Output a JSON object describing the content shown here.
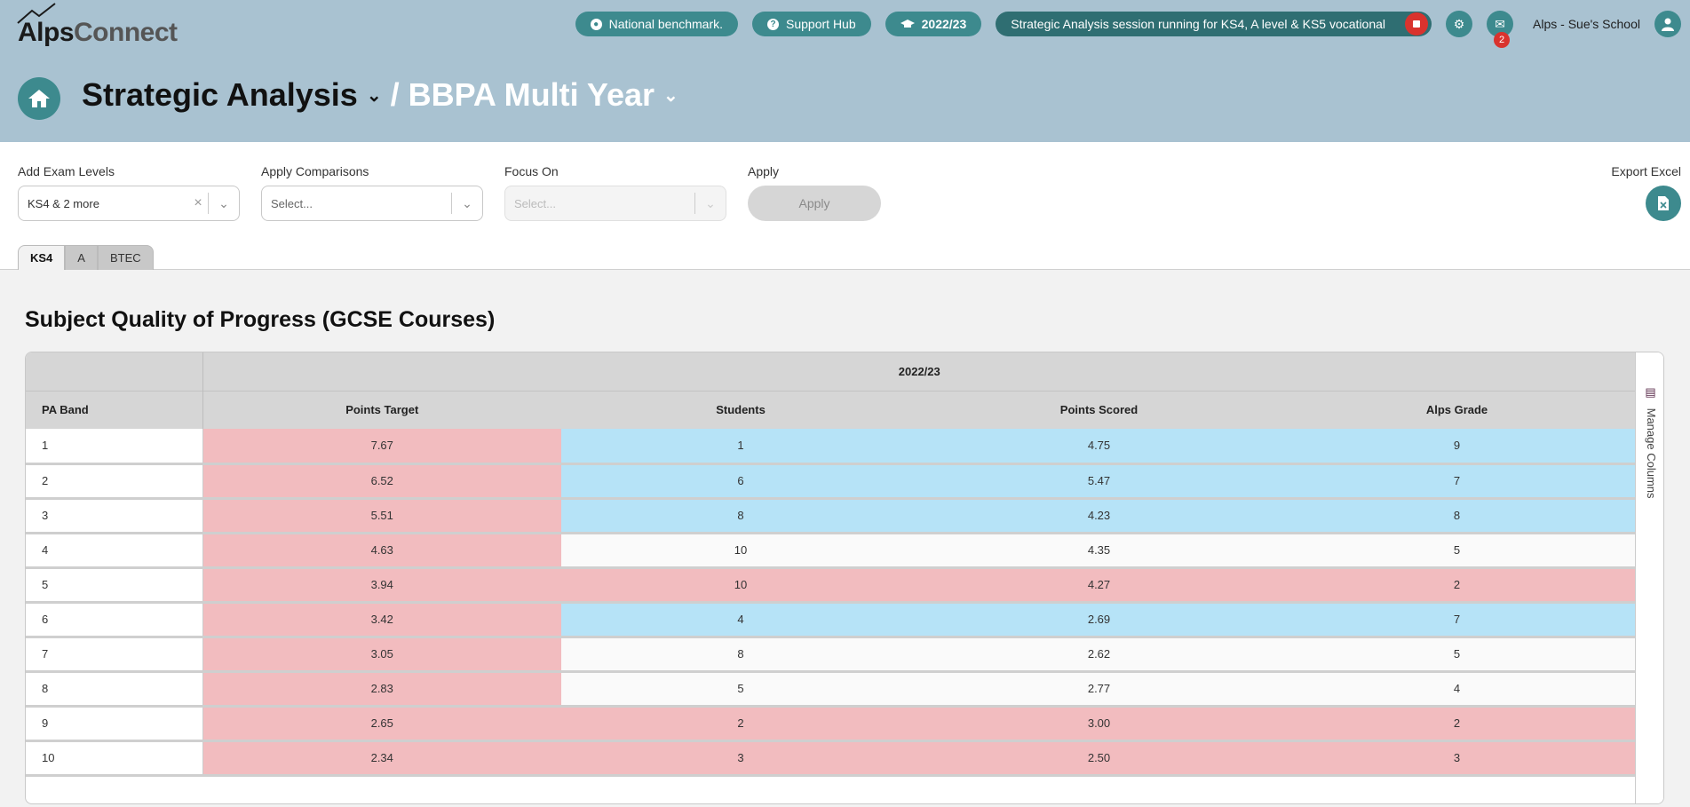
{
  "app": {
    "logo_alps": "Alps",
    "logo_connect": "Connect"
  },
  "topbar": {
    "benchmark_label": "National benchmark.",
    "support_label": "Support Hub",
    "year_label": "2022/23",
    "session_label": "Strategic Analysis session running for KS4, A level & KS5 vocational",
    "notifications_count": "2",
    "school_label": "Alps - Sue's School"
  },
  "page": {
    "title": "Strategic Analysis",
    "separator": "/",
    "subtitle": "BBPA Multi Year"
  },
  "filters": {
    "exam_levels_label": "Add Exam Levels",
    "exam_levels_value": "KS4 & 2 more",
    "comparisons_label": "Apply Comparisons",
    "comparisons_placeholder": "Select...",
    "focus_label": "Focus On",
    "focus_placeholder": "Select...",
    "apply_label": "Apply",
    "apply_button": "Apply",
    "export_label": "Export Excel"
  },
  "tabs": [
    "KS4",
    "A",
    "BTEC"
  ],
  "section": {
    "title": "Subject Quality of Progress (GCSE Courses)"
  },
  "table": {
    "year": "2022/23",
    "headers": [
      "PA Band",
      "Points Target",
      "Students",
      "Points Scored",
      "Alps Grade"
    ],
    "rows": [
      {
        "band": "1",
        "target": "7.67",
        "students": "1",
        "scored": "4.75",
        "grade": "9",
        "color": "blue"
      },
      {
        "band": "2",
        "target": "6.52",
        "students": "6",
        "scored": "5.47",
        "grade": "7",
        "color": "blue"
      },
      {
        "band": "3",
        "target": "5.51",
        "students": "8",
        "scored": "4.23",
        "grade": "8",
        "color": "blue"
      },
      {
        "band": "4",
        "target": "4.63",
        "students": "10",
        "scored": "4.35",
        "grade": "5",
        "color": "white"
      },
      {
        "band": "5",
        "target": "3.94",
        "students": "10",
        "scored": "4.27",
        "grade": "2",
        "color": "pink"
      },
      {
        "band": "6",
        "target": "3.42",
        "students": "4",
        "scored": "2.69",
        "grade": "7",
        "color": "blue"
      },
      {
        "band": "7",
        "target": "3.05",
        "students": "8",
        "scored": "2.62",
        "grade": "5",
        "color": "white"
      },
      {
        "band": "8",
        "target": "2.83",
        "students": "5",
        "scored": "2.77",
        "grade": "4",
        "color": "white"
      },
      {
        "band": "9",
        "target": "2.65",
        "students": "2",
        "scored": "3.00",
        "grade": "2",
        "color": "pink"
      },
      {
        "band": "10",
        "target": "2.34",
        "students": "3",
        "scored": "2.50",
        "grade": "3",
        "color": "pink"
      }
    ],
    "manage_columns": "Manage Columns"
  },
  "colors": {
    "accent": "#3d8a8e",
    "header_bg": "#a9c2d1",
    "pink": "#f2bcbf",
    "blue": "#b6e3f7",
    "danger": "#d9332e"
  }
}
